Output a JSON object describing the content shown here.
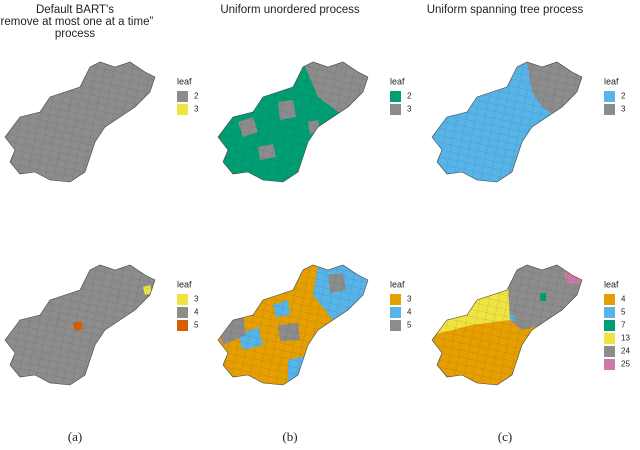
{
  "columns": [
    {
      "title": [
        "Default BART's",
        "“remove at most one at a time”",
        "process"
      ],
      "caption": "(a)"
    },
    {
      "title": [
        "Uniform unordered process"
      ],
      "caption": "(b)"
    },
    {
      "title": [
        "Uniform spanning tree process"
      ],
      "caption": "(c)"
    }
  ],
  "maps": [
    {
      "legend_title": "leaf",
      "entries": [
        {
          "label": 2,
          "color": "#8c8c8c"
        },
        {
          "label": 3,
          "color": "#f0e442"
        }
      ]
    },
    {
      "legend_title": "leaf",
      "entries": [
        {
          "label": 3,
          "color": "#f0e442"
        },
        {
          "label": 4,
          "color": "#8c8c8c"
        },
        {
          "label": 5,
          "color": "#d55e00"
        }
      ]
    },
    {
      "legend_title": "leaf",
      "entries": [
        {
          "label": 2,
          "color": "#009e73"
        },
        {
          "label": 3,
          "color": "#8c8c8c"
        }
      ]
    },
    {
      "legend_title": "leaf",
      "entries": [
        {
          "label": 3,
          "color": "#e69f00"
        },
        {
          "label": 4,
          "color": "#56b4e9"
        },
        {
          "label": 5,
          "color": "#8c8c8c"
        }
      ]
    },
    {
      "legend_title": "leaf",
      "entries": [
        {
          "label": 2,
          "color": "#56b4e9"
        },
        {
          "label": 3,
          "color": "#8c8c8c"
        }
      ]
    },
    {
      "legend_title": "leaf",
      "entries": [
        {
          "label": 4,
          "color": "#e69f00"
        },
        {
          "label": 5,
          "color": "#56b4e9"
        },
        {
          "label": 7,
          "color": "#009e73"
        },
        {
          "label": 13,
          "color": "#f0e442"
        },
        {
          "label": 24,
          "color": "#8c8c8c"
        },
        {
          "label": 25,
          "color": "#cc79a7"
        }
      ]
    }
  ]
}
